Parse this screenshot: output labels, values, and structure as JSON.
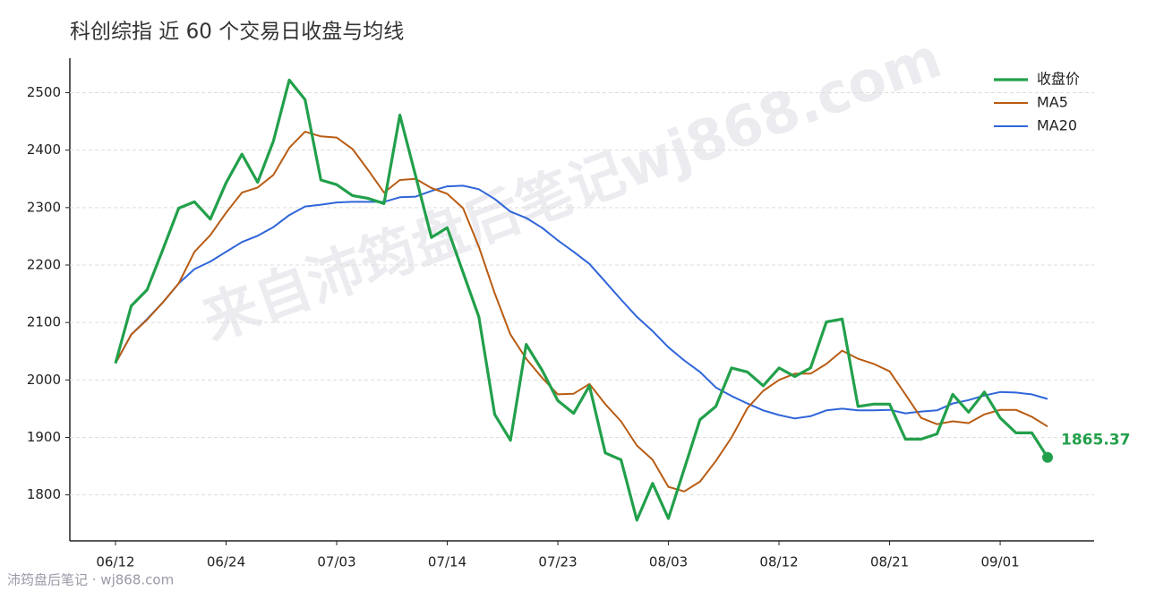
{
  "chart_data": {
    "type": "line",
    "title": "科创综指 近 60 个交易日收盘与均线",
    "watermark": "来自沛筠盘后笔记wj868.com",
    "footer": "沛筠盘后笔记 · wj868.com",
    "categories": [
      "06/12",
      null,
      null,
      null,
      null,
      null,
      null,
      "06/24",
      null,
      null,
      null,
      null,
      null,
      null,
      "07/03",
      null,
      null,
      null,
      null,
      null,
      null,
      "07/14",
      null,
      null,
      null,
      null,
      null,
      null,
      "07/23",
      null,
      null,
      null,
      null,
      null,
      null,
      "08/03",
      null,
      null,
      null,
      null,
      null,
      null,
      "08/12",
      null,
      null,
      null,
      null,
      null,
      null,
      "08/21",
      null,
      null,
      null,
      null,
      null,
      null,
      "09/01",
      null,
      null,
      null
    ],
    "series": [
      {
        "name": "收盘价",
        "color": "#22a04b",
        "values": [
          2029,
          2129,
          2157,
          2227,
          2299,
          2310,
          2280,
          2343,
          2393,
          2344,
          2416,
          2522,
          2488,
          2348,
          2340,
          2321,
          2316,
          2307,
          2461,
          2355,
          2248,
          2265,
          2187,
          2110,
          1940,
          1895,
          2062,
          2017,
          1964,
          1942,
          1990,
          1873,
          1861,
          1756,
          1820,
          1759,
          1845,
          1931,
          1954,
          2021,
          2014,
          1990,
          2021,
          2006,
          2021,
          2101,
          2106,
          1954,
          1958,
          1958,
          1897,
          1897,
          1906,
          1975,
          1944,
          1979,
          1934,
          1908,
          1908,
          1865.37
        ]
      },
      {
        "name": "MA5",
        "color": "#b85c14",
        "values": [
          2029,
          2079,
          2105,
          2135,
          2168,
          2223,
          2252,
          2291,
          2326,
          2335,
          2357,
          2404,
          2432,
          2424,
          2422,
          2402,
          2365,
          2326,
          2348,
          2350,
          2334,
          2324,
          2299,
          2232,
          2151,
          2079,
          2037,
          2004,
          1975,
          1976,
          1993,
          1958,
          1928,
          1886,
          1861,
          1814,
          1806,
          1823,
          1859,
          1900,
          1951,
          1981,
          2000,
          2011,
          2011,
          2028,
          2051,
          2037,
          2028,
          2015,
          1975,
          1934,
          1923,
          1928,
          1925,
          1940,
          1948,
          1948,
          1936,
          1919
        ]
      },
      {
        "name": "MA20",
        "color": "#2f65d9",
        "values": [
          2029,
          2079,
          2106,
          2135,
          2168,
          2193,
          2206,
          2223,
          2240,
          2251,
          2266,
          2287,
          2302,
          2305,
          2309,
          2310,
          2310,
          2310,
          2318,
          2319,
          2329,
          2337,
          2338,
          2332,
          2315,
          2293,
          2282,
          2265,
          2243,
          2223,
          2202,
          2171,
          2140,
          2110,
          2085,
          2057,
          2034,
          2014,
          1987,
          1972,
          1959,
          1947,
          1939,
          1933,
          1937,
          1947,
          1950,
          1947,
          1947,
          1948,
          1942,
          1945,
          1947,
          1959,
          1965,
          1973,
          1979,
          1978,
          1975,
          1967
        ]
      }
    ],
    "ylim": [
      1720,
      2560
    ],
    "yticks": [
      1800,
      1900,
      2000,
      2100,
      2200,
      2300,
      2400,
      2500
    ],
    "grid": true,
    "legend": "upper right"
  }
}
